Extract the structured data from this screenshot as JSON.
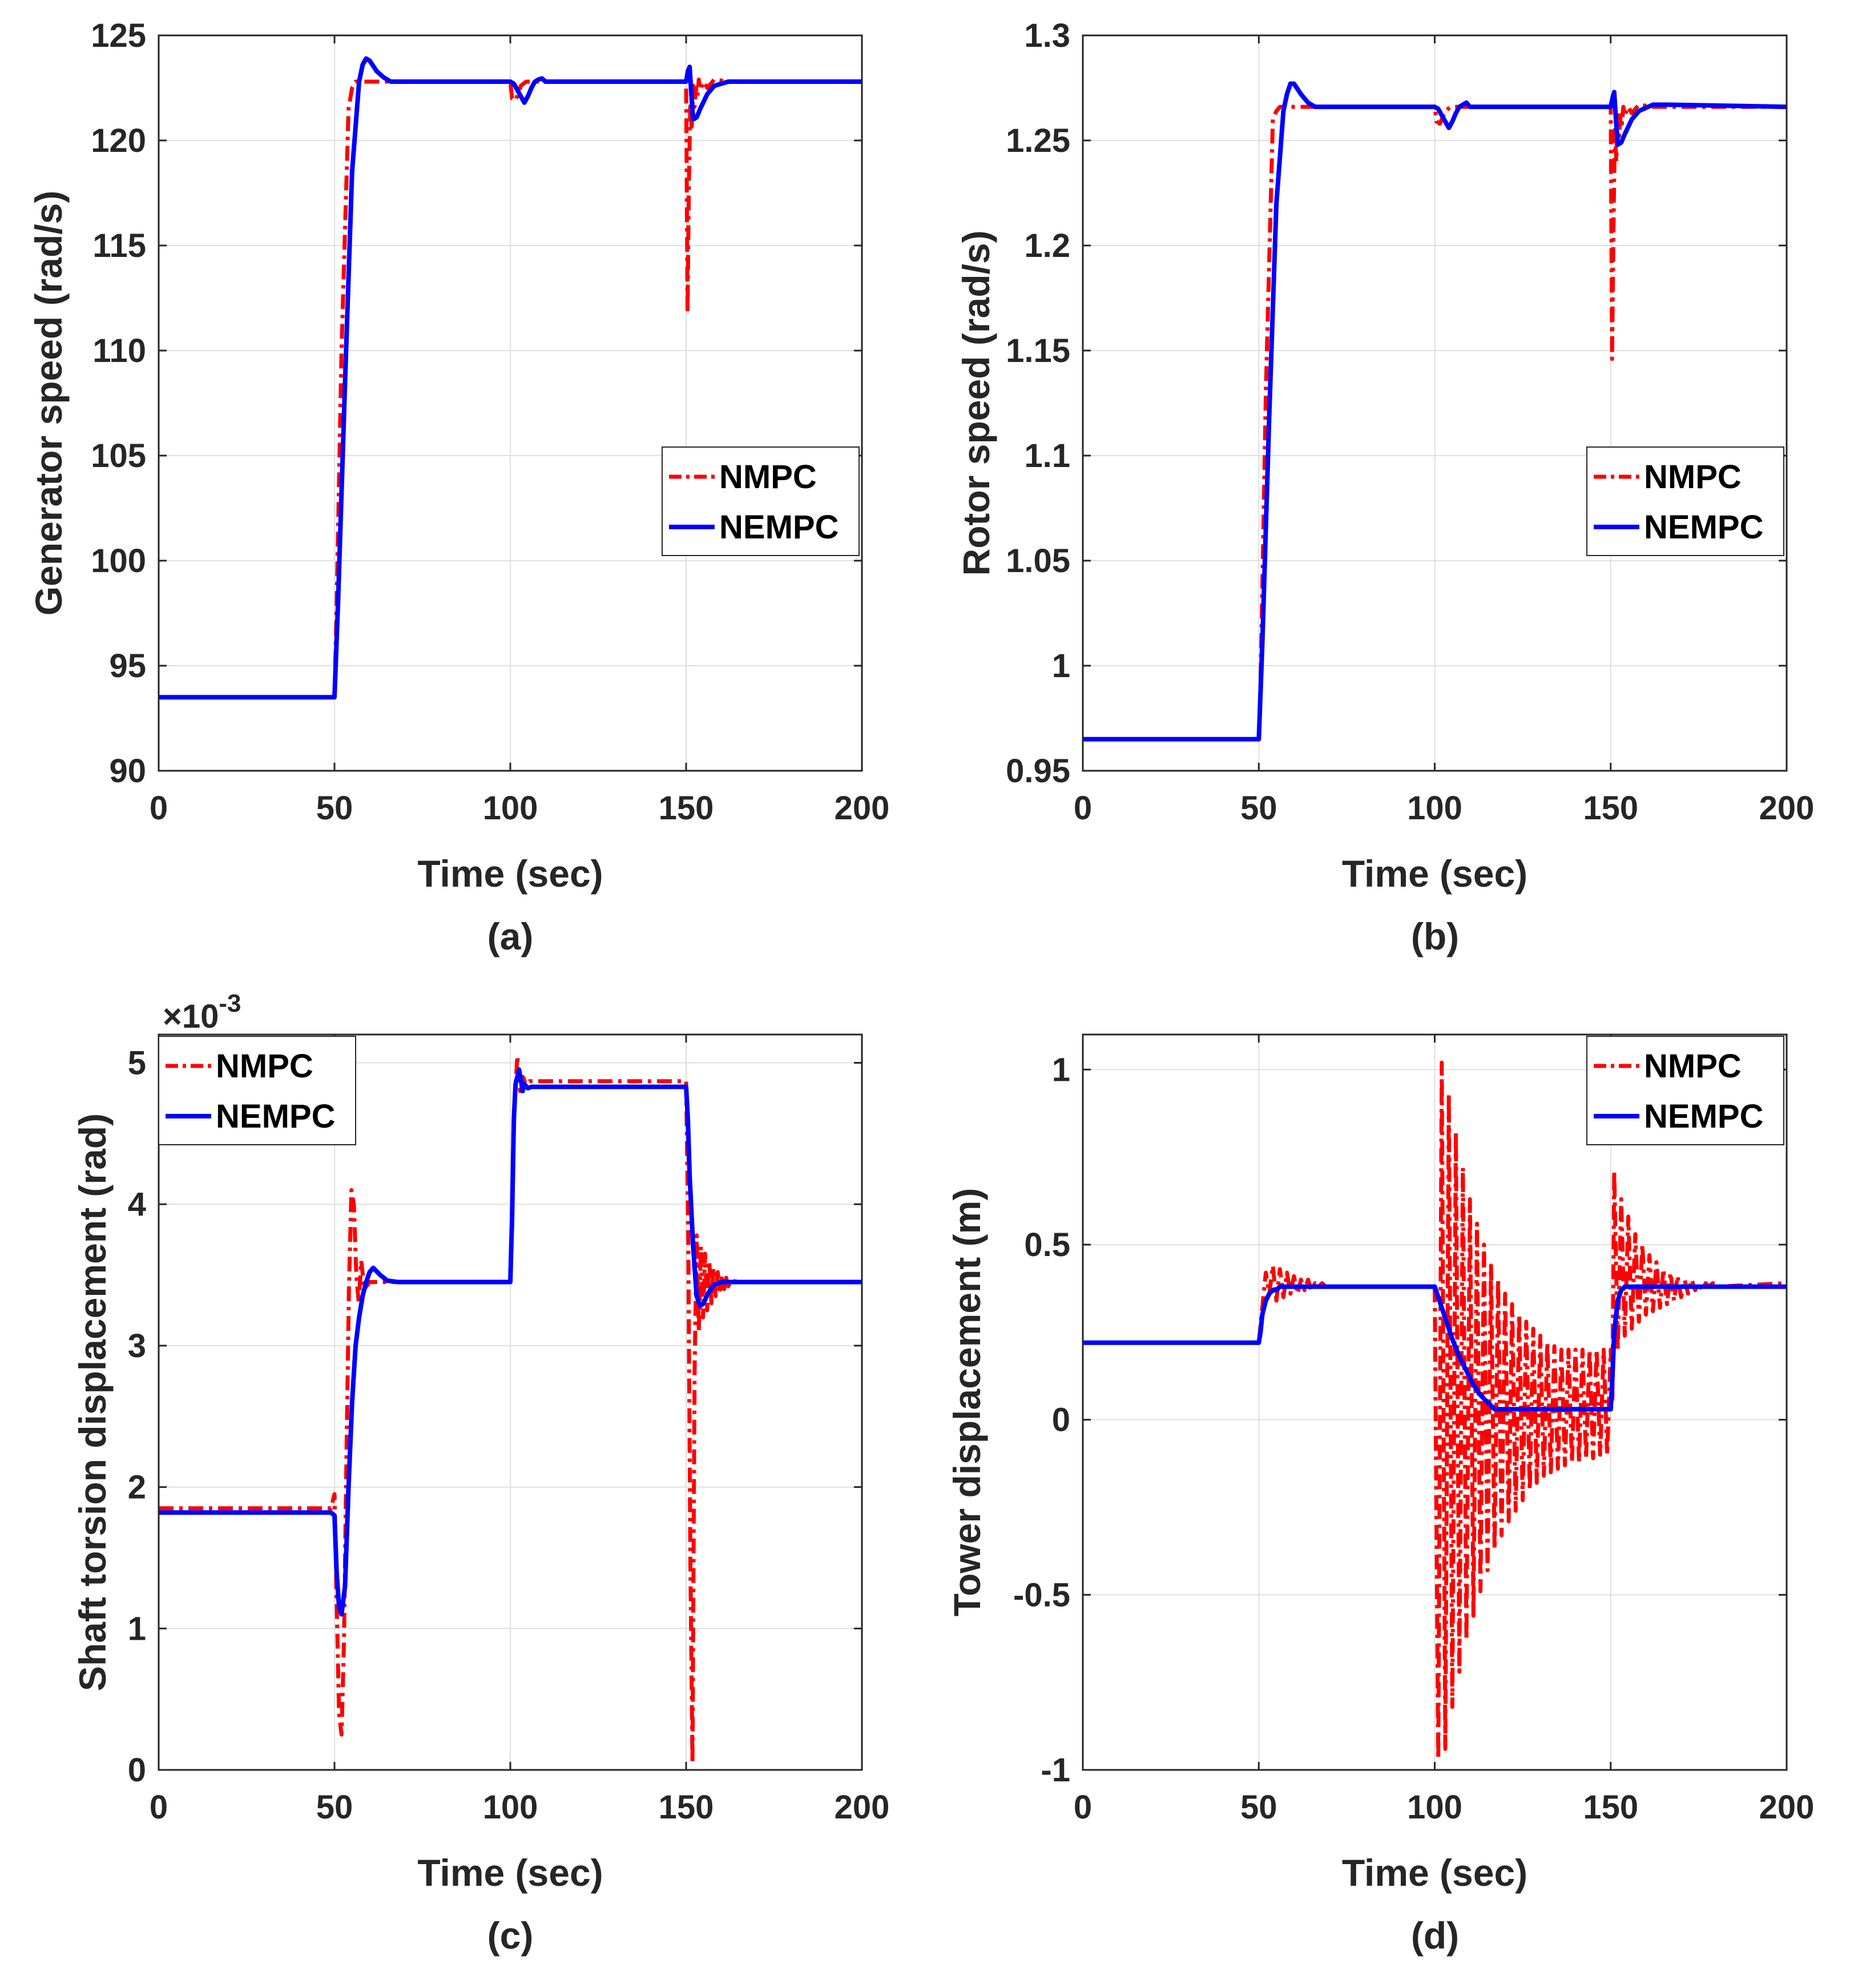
{
  "colors": {
    "nmpc": "#ff0000",
    "nempc": "#0000ff",
    "axis": "#262626",
    "grid": "#dfdfdf"
  },
  "chart_data": [
    {
      "type": "line",
      "panel": "(a)",
      "xlabel": "Time (sec)",
      "ylabel": "Generator speed (rad/s)",
      "xlim": [
        0,
        200
      ],
      "ylim": [
        90,
        125
      ],
      "xticks": [
        0,
        50,
        100,
        150,
        200
      ],
      "yticks": [
        90,
        95,
        100,
        105,
        110,
        115,
        120,
        125
      ],
      "ytick_labels": [
        "90",
        "95",
        "100",
        "105",
        "110",
        "115",
        "120",
        "125"
      ],
      "grid": true,
      "legend_position": "center-right",
      "series": [
        {
          "name": "NMPC",
          "style": "dash-dot",
          "x": [
            0,
            50,
            50.5,
            52,
            54,
            55,
            56,
            60,
            70,
            100,
            100.5,
            101.5,
            103,
            104.5,
            107,
            150,
            150.4,
            150.8,
            151.2,
            151.6,
            152,
            152.4,
            152.8,
            153.2,
            153.6,
            154,
            155,
            156,
            158,
            162,
            200
          ],
          "y": [
            93.5,
            93.5,
            97,
            110,
            121.5,
            122.5,
            122.8,
            122.8,
            122.8,
            122.8,
            122,
            121.9,
            122.6,
            122.8,
            122.8,
            122.8,
            111.8,
            118,
            121.8,
            120.5,
            122.6,
            121.6,
            122.5,
            122.1,
            122.9,
            122.4,
            122.8,
            122.5,
            122.9,
            122.8,
            122.8
          ]
        },
        {
          "name": "NEMPC",
          "style": "solid",
          "x": [
            0,
            50,
            51,
            53,
            55,
            57,
            58,
            59,
            60,
            62,
            64,
            66,
            70,
            100,
            101,
            102,
            103,
            104,
            105,
            106,
            107,
            108,
            109,
            110,
            150,
            150.5,
            151,
            151.5,
            152,
            153,
            154,
            156,
            158,
            162,
            166,
            200
          ],
          "y": [
            93.5,
            93.5,
            98,
            108.5,
            118.5,
            122.8,
            123.6,
            123.9,
            123.8,
            123.3,
            123,
            122.8,
            122.8,
            122.8,
            122.7,
            122.4,
            122.1,
            121.8,
            122.1,
            122.5,
            122.8,
            122.9,
            122.95,
            122.8,
            122.8,
            123.3,
            123.5,
            122.2,
            121,
            121.1,
            121.5,
            122.2,
            122.6,
            122.8,
            122.8,
            122.8
          ]
        }
      ]
    },
    {
      "type": "line",
      "panel": "(b)",
      "xlabel": "Time (sec)",
      "ylabel": "Rotor speed (rad/s)",
      "xlim": [
        0,
        200
      ],
      "ylim": [
        0.95,
        1.3
      ],
      "xticks": [
        0,
        50,
        100,
        150,
        200
      ],
      "yticks": [
        0.95,
        1.0,
        1.05,
        1.1,
        1.15,
        1.2,
        1.25,
        1.3
      ],
      "ytick_labels": [
        "0.95",
        "1",
        "1.05",
        "1.1",
        "1.15",
        "1.2",
        "1.25",
        "1.3"
      ],
      "grid": true,
      "legend_position": "center-right",
      "series": [
        {
          "name": "NMPC",
          "style": "dash-dot",
          "x": [
            0,
            50,
            50.5,
            52,
            54,
            55,
            56,
            60,
            70,
            100,
            100.5,
            101.5,
            103,
            104.5,
            107,
            150,
            150.4,
            150.8,
            151.2,
            151.6,
            152,
            152.4,
            152.8,
            153.2,
            153.6,
            154,
            155,
            156,
            158,
            162,
            200
          ],
          "y": [
            0.965,
            0.965,
            0.99,
            1.13,
            1.26,
            1.264,
            1.266,
            1.266,
            1.266,
            1.266,
            1.259,
            1.258,
            1.264,
            1.266,
            1.266,
            1.266,
            1.146,
            1.21,
            1.255,
            1.24,
            1.262,
            1.252,
            1.262,
            1.258,
            1.266,
            1.262,
            1.266,
            1.263,
            1.267,
            1.266,
            1.266
          ]
        },
        {
          "name": "NEMPC",
          "style": "solid",
          "x": [
            0,
            50,
            51,
            53,
            55,
            57,
            58,
            59,
            60,
            62,
            64,
            66,
            70,
            100,
            101,
            102,
            103,
            104,
            105,
            106,
            107,
            108,
            109,
            110,
            150,
            150.5,
            151,
            151.5,
            152,
            153,
            154,
            156,
            158,
            162,
            166,
            200
          ],
          "y": [
            0.965,
            0.965,
            1.01,
            1.12,
            1.22,
            1.264,
            1.272,
            1.277,
            1.277,
            1.272,
            1.268,
            1.266,
            1.266,
            1.266,
            1.265,
            1.262,
            1.259,
            1.256,
            1.259,
            1.263,
            1.266,
            1.267,
            1.268,
            1.266,
            1.266,
            1.27,
            1.273,
            1.26,
            1.248,
            1.249,
            1.253,
            1.26,
            1.264,
            1.267,
            1.267,
            1.266
          ]
        }
      ]
    },
    {
      "type": "line",
      "panel": "(c)",
      "xlabel": "Time (sec)",
      "ylabel": "Shaft torsion displacement (rad)",
      "y_exponent_label": "×10-3",
      "y_exponent_base": "×10",
      "y_exponent_power": "-3",
      "xlim": [
        0,
        200
      ],
      "ylim": [
        0,
        5.2
      ],
      "xticks": [
        0,
        50,
        100,
        150,
        200
      ],
      "yticks": [
        0,
        1,
        2,
        3,
        4,
        5
      ],
      "ytick_labels": [
        "0",
        "1",
        "2",
        "3",
        "4",
        "5"
      ],
      "grid": true,
      "legend_position": "top-left",
      "series": [
        {
          "name": "NMPC",
          "style": "dash-dot",
          "x": [
            0,
            49,
            50,
            50.6,
            51.3,
            52,
            52.7,
            53.4,
            54.1,
            54.8,
            55.5,
            56.2,
            56.9,
            57.6,
            58.5,
            60,
            62,
            65,
            100,
            100.5,
            101.2,
            102,
            102.8,
            103.6,
            104.4,
            105.5,
            108,
            150,
            150.6,
            151.2,
            151.8,
            152.4,
            153,
            153.6,
            154.2,
            154.8,
            155.4,
            156,
            156.6,
            157.2,
            157.8,
            158.4,
            159,
            159.6,
            160.2,
            160.8,
            161.4,
            162,
            163,
            165,
            170,
            200
          ],
          "y": [
            1.85,
            1.85,
            1.95,
            1.2,
            0.4,
            0.25,
            0.9,
            2.2,
            3.4,
            4.1,
            4.0,
            3.5,
            3.3,
            3.6,
            3.4,
            3.45,
            3.45,
            3.45,
            3.45,
            4.0,
            4.7,
            5.05,
            4.8,
            4.9,
            4.85,
            4.87,
            4.87,
            4.87,
            3.8,
            1.5,
            0.05,
            2.8,
            3.78,
            3.1,
            3.7,
            3.2,
            3.65,
            3.25,
            3.6,
            3.3,
            3.55,
            3.35,
            3.52,
            3.38,
            3.5,
            3.4,
            3.48,
            3.42,
            3.46,
            3.45,
            3.45,
            3.45
          ]
        },
        {
          "name": "NEMPC",
          "style": "solid",
          "x": [
            0,
            49,
            50,
            50.6,
            51.3,
            52,
            53,
            54,
            55,
            56,
            57,
            58,
            59,
            60,
            61,
            63,
            65,
            68,
            100,
            100.5,
            101,
            101.5,
            102,
            102.5,
            103,
            103.5,
            104,
            105,
            106,
            108,
            110,
            150,
            150.5,
            151,
            152,
            153,
            154,
            155,
            156,
            157,
            158,
            160,
            163,
            168,
            200
          ],
          "y": [
            1.82,
            1.82,
            1.8,
            1.4,
            1.15,
            1.1,
            1.3,
            2.0,
            2.6,
            3.0,
            3.2,
            3.35,
            3.45,
            3.52,
            3.55,
            3.5,
            3.46,
            3.45,
            3.45,
            3.9,
            4.6,
            4.85,
            4.9,
            4.95,
            4.88,
            4.8,
            4.85,
            4.82,
            4.83,
            4.83,
            4.83,
            4.83,
            4.6,
            4.2,
            3.7,
            3.35,
            3.28,
            3.3,
            3.36,
            3.4,
            3.43,
            3.45,
            3.45,
            3.45,
            3.45
          ]
        }
      ]
    },
    {
      "type": "line",
      "panel": "(d)",
      "xlabel": "Time (sec)",
      "ylabel": "Tower displacement (m)",
      "xlim": [
        0,
        200
      ],
      "ylim": [
        -1,
        1.1
      ],
      "xticks": [
        0,
        50,
        100,
        150,
        200
      ],
      "yticks": [
        -1,
        -0.5,
        0,
        0.5,
        1
      ],
      "ytick_labels": [
        "-1",
        "-0.5",
        "0",
        "0.5",
        "1"
      ],
      "grid": true,
      "legend_position": "top-right",
      "series": [
        {
          "name": "NMPC",
          "style": "dash-dot",
          "x": [
            0,
            50,
            51,
            52,
            53,
            54,
            55,
            56,
            57,
            58,
            59,
            60,
            61,
            62,
            63,
            64,
            65,
            66,
            67,
            68,
            69,
            70,
            100,
            101,
            102,
            103,
            104,
            105,
            106,
            107,
            108,
            109,
            110,
            111,
            112,
            113,
            114,
            115,
            116,
            117,
            118,
            119,
            120,
            121,
            122,
            123,
            124,
            125,
            126,
            127,
            128,
            129,
            130,
            131,
            132,
            133,
            134,
            135,
            136,
            137,
            138,
            139,
            140,
            141,
            142,
            143,
            144,
            145,
            146,
            147,
            148,
            149,
            150,
            150.5,
            151,
            152,
            153,
            154,
            155,
            156,
            157,
            158,
            159,
            160,
            161,
            162,
            163,
            164,
            165,
            166,
            167,
            168,
            169,
            170,
            171,
            172,
            173,
            174,
            175,
            176,
            177,
            178,
            179,
            180,
            200
          ],
          "y": [
            0.22,
            0.22,
            0.32,
            0.42,
            0.36,
            0.44,
            0.34,
            0.43,
            0.35,
            0.42,
            0.36,
            0.41,
            0.36,
            0.4,
            0.37,
            0.4,
            0.37,
            0.39,
            0.38,
            0.39,
            0.38,
            0.38,
            0.38,
            -0.97,
            1.02,
            -0.94,
            0.93,
            -0.82,
            0.82,
            -0.72,
            0.72,
            -0.63,
            0.63,
            -0.56,
            0.56,
            -0.49,
            0.5,
            -0.43,
            0.44,
            -0.37,
            0.4,
            -0.33,
            0.36,
            -0.29,
            0.33,
            -0.26,
            0.3,
            -0.23,
            0.28,
            -0.2,
            0.26,
            -0.18,
            0.24,
            -0.16,
            0.22,
            -0.15,
            0.21,
            -0.14,
            0.2,
            -0.13,
            0.2,
            -0.12,
            0.2,
            -0.12,
            0.2,
            -0.11,
            0.2,
            -0.11,
            0.2,
            -0.1,
            0.2,
            -0.1,
            0.2,
            0.05,
            0.71,
            0.2,
            0.63,
            0.24,
            0.58,
            0.26,
            0.53,
            0.28,
            0.5,
            0.3,
            0.47,
            0.31,
            0.45,
            0.32,
            0.43,
            0.33,
            0.42,
            0.34,
            0.41,
            0.35,
            0.4,
            0.36,
            0.4,
            0.37,
            0.39,
            0.37,
            0.39,
            0.38,
            0.39,
            0.38,
            0.39
          ]
        },
        {
          "name": "NEMPC",
          "style": "solid",
          "x": [
            0,
            50,
            50.5,
            51,
            52,
            53,
            54,
            55,
            56,
            58,
            60,
            65,
            70,
            100,
            101,
            103,
            105,
            107,
            109,
            111,
            113,
            115,
            116,
            117,
            118,
            120,
            150,
            150.5,
            151,
            152,
            153,
            154,
            155,
            160,
            200
          ],
          "y": [
            0.22,
            0.22,
            0.25,
            0.3,
            0.34,
            0.36,
            0.37,
            0.37,
            0.38,
            0.38,
            0.38,
            0.38,
            0.38,
            0.38,
            0.35,
            0.29,
            0.23,
            0.18,
            0.14,
            0.1,
            0.07,
            0.05,
            0.04,
            0.03,
            0.03,
            0.03,
            0.03,
            0.12,
            0.25,
            0.34,
            0.37,
            0.38,
            0.38,
            0.38,
            0.38
          ]
        }
      ]
    }
  ]
}
